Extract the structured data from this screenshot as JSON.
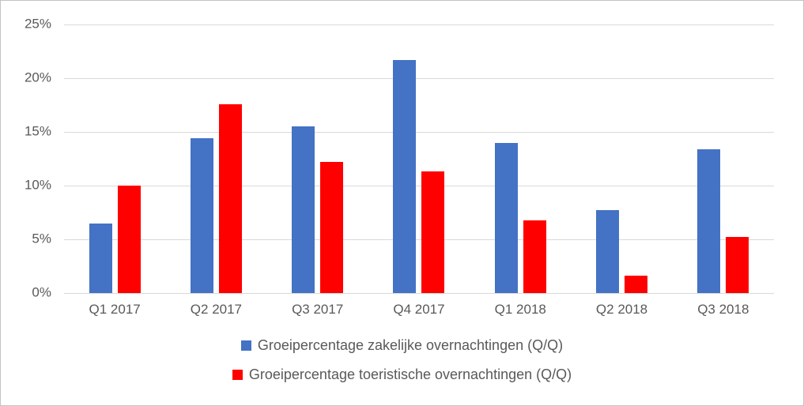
{
  "chart_data": {
    "type": "bar",
    "title": "",
    "xlabel": "",
    "ylabel": "",
    "categories": [
      "Q1 2017",
      "Q2 2017",
      "Q3 2017",
      "Q4 2017",
      "Q1 2018",
      "Q2 2018",
      "Q3 2018"
    ],
    "series": [
      {
        "name": "Groeipercentage zakelijke overnachtingen (Q/Q)",
        "color": "#4472C4",
        "values": [
          6.5,
          14.4,
          15.5,
          21.7,
          14.0,
          7.7,
          13.4
        ]
      },
      {
        "name": "Groeipercentage toeristische overnachtingen (Q/Q)",
        "color": "#FF0000",
        "values": [
          10.0,
          17.6,
          12.2,
          11.3,
          6.8,
          1.6,
          5.2
        ]
      }
    ],
    "ylim": [
      0,
      25
    ],
    "ytick_step": 5,
    "ytick_labels": [
      "0%",
      "5%",
      "10%",
      "15%",
      "20%",
      "25%"
    ],
    "grid": true,
    "legend_position": "bottom"
  },
  "colors": {
    "gridline": "#D9D9D9",
    "axis_text": "#595959",
    "frame_border": "#C3C3C3",
    "background": "#FFFFFF",
    "series_blue": "#4472C4",
    "series_red": "#FF0000"
  }
}
